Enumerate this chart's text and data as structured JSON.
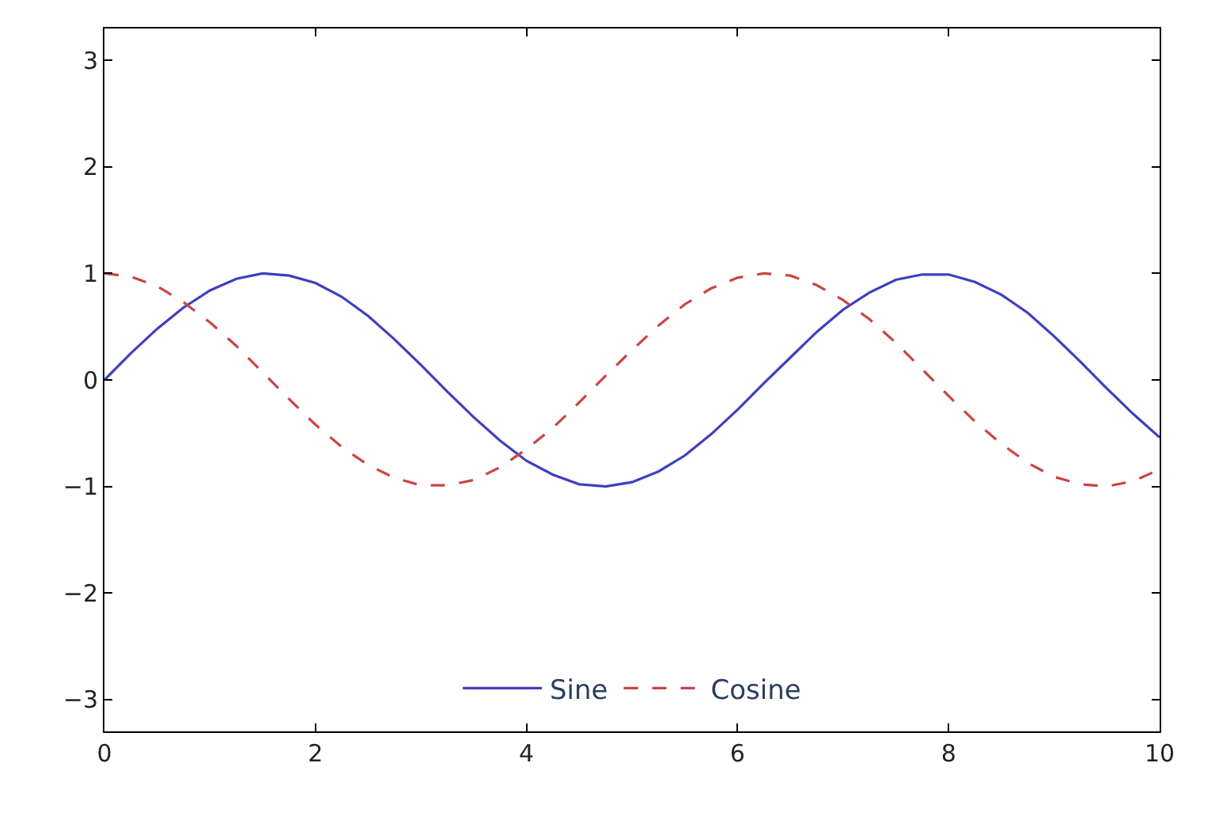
{
  "chart_data": {
    "type": "line",
    "x": [
      0,
      0.25,
      0.5,
      0.75,
      1,
      1.25,
      1.5,
      1.75,
      2,
      2.25,
      2.5,
      2.75,
      3,
      3.25,
      3.5,
      3.75,
      4,
      4.25,
      4.5,
      4.75,
      5,
      5.25,
      5.5,
      5.75,
      6,
      6.25,
      6.5,
      6.75,
      7,
      7.25,
      7.5,
      7.75,
      8,
      8.25,
      8.5,
      8.75,
      9,
      9.25,
      9.5,
      9.75,
      10
    ],
    "series": [
      {
        "name": "Sine",
        "color": "#3f3fbf",
        "line_style": "solid",
        "values": [
          0,
          0.25,
          0.48,
          0.68,
          0.84,
          0.95,
          1.0,
          0.98,
          0.91,
          0.78,
          0.6,
          0.38,
          0.14,
          -0.11,
          -0.35,
          -0.57,
          -0.76,
          -0.89,
          -0.98,
          -1.0,
          -0.96,
          -0.86,
          -0.71,
          -0.51,
          -0.28,
          -0.03,
          0.21,
          0.45,
          0.66,
          0.82,
          0.94,
          0.99,
          0.99,
          0.92,
          0.8,
          0.63,
          0.41,
          0.17,
          -0.08,
          -0.32,
          -0.54
        ]
      },
      {
        "name": "Cosine",
        "color": "#cc4444",
        "line_style": "dashed",
        "values": [
          1.0,
          0.97,
          0.88,
          0.73,
          0.54,
          0.32,
          0.07,
          -0.18,
          -0.42,
          -0.63,
          -0.8,
          -0.92,
          -0.99,
          -0.99,
          -0.94,
          -0.82,
          -0.65,
          -0.45,
          -0.21,
          0.04,
          0.28,
          0.51,
          0.71,
          0.86,
          0.96,
          1.0,
          0.98,
          0.89,
          0.75,
          0.57,
          0.35,
          0.1,
          -0.15,
          -0.39,
          -0.6,
          -0.78,
          -0.91,
          -0.98,
          -1.0,
          -0.95,
          -0.84
        ]
      }
    ],
    "xlim": [
      0,
      10
    ],
    "xticks": [
      0,
      2,
      4,
      6,
      8,
      10
    ],
    "ylim": [
      -3.3,
      3.3
    ],
    "yticks": [
      {
        "value": -3,
        "label": "−3"
      },
      {
        "value": -2,
        "label": "−2"
      },
      {
        "value": -1,
        "label": "−1"
      },
      0,
      1,
      2,
      3
    ],
    "legend": "bottom",
    "marker": "none"
  }
}
